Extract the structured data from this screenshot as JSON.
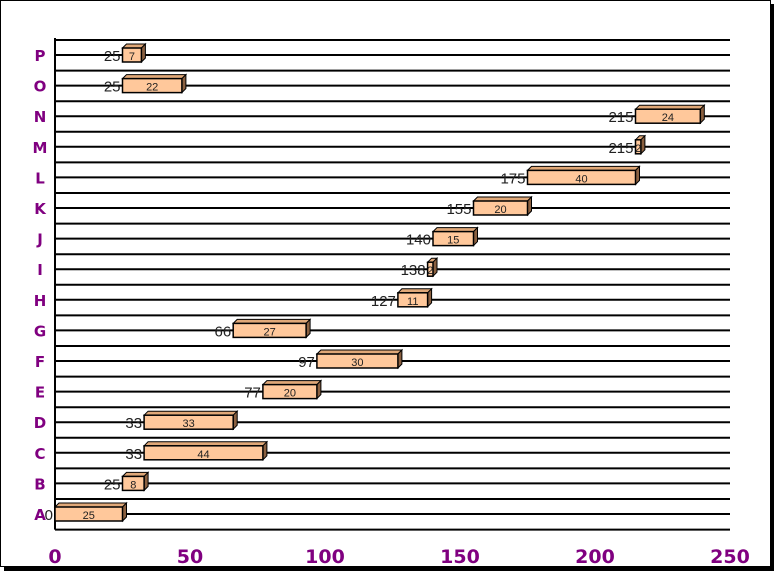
{
  "chart_data": {
    "type": "bar",
    "subtype": "gantt-floating-horizontal-3d",
    "title": "",
    "xlabel": "",
    "ylabel": "",
    "xlim": [
      0,
      250
    ],
    "x_ticks": [
      "0",
      "50",
      "100",
      "150",
      "200",
      "250"
    ],
    "grid": "horizontal",
    "legend": "none",
    "categories": [
      "A",
      "B",
      "C",
      "D",
      "E",
      "F",
      "G",
      "H",
      "I",
      "J",
      "K",
      "L",
      "M",
      "N",
      "O",
      "P"
    ],
    "series": [
      {
        "role": "start",
        "values": [
          0,
          25,
          33,
          33,
          77,
          97,
          66,
          127,
          138,
          140,
          155,
          175,
          215,
          215,
          25,
          25
        ]
      },
      {
        "role": "duration",
        "values": [
          25,
          8,
          44,
          33,
          20,
          30,
          27,
          11,
          2,
          15,
          20,
          40,
          2,
          24,
          22,
          7
        ]
      }
    ],
    "colors": {
      "bar_face": "#ffc89b",
      "bar_side": "#8a6040",
      "bar_top": "#e0a878",
      "axis_labels": "#800080",
      "grid": "#000000"
    }
  }
}
